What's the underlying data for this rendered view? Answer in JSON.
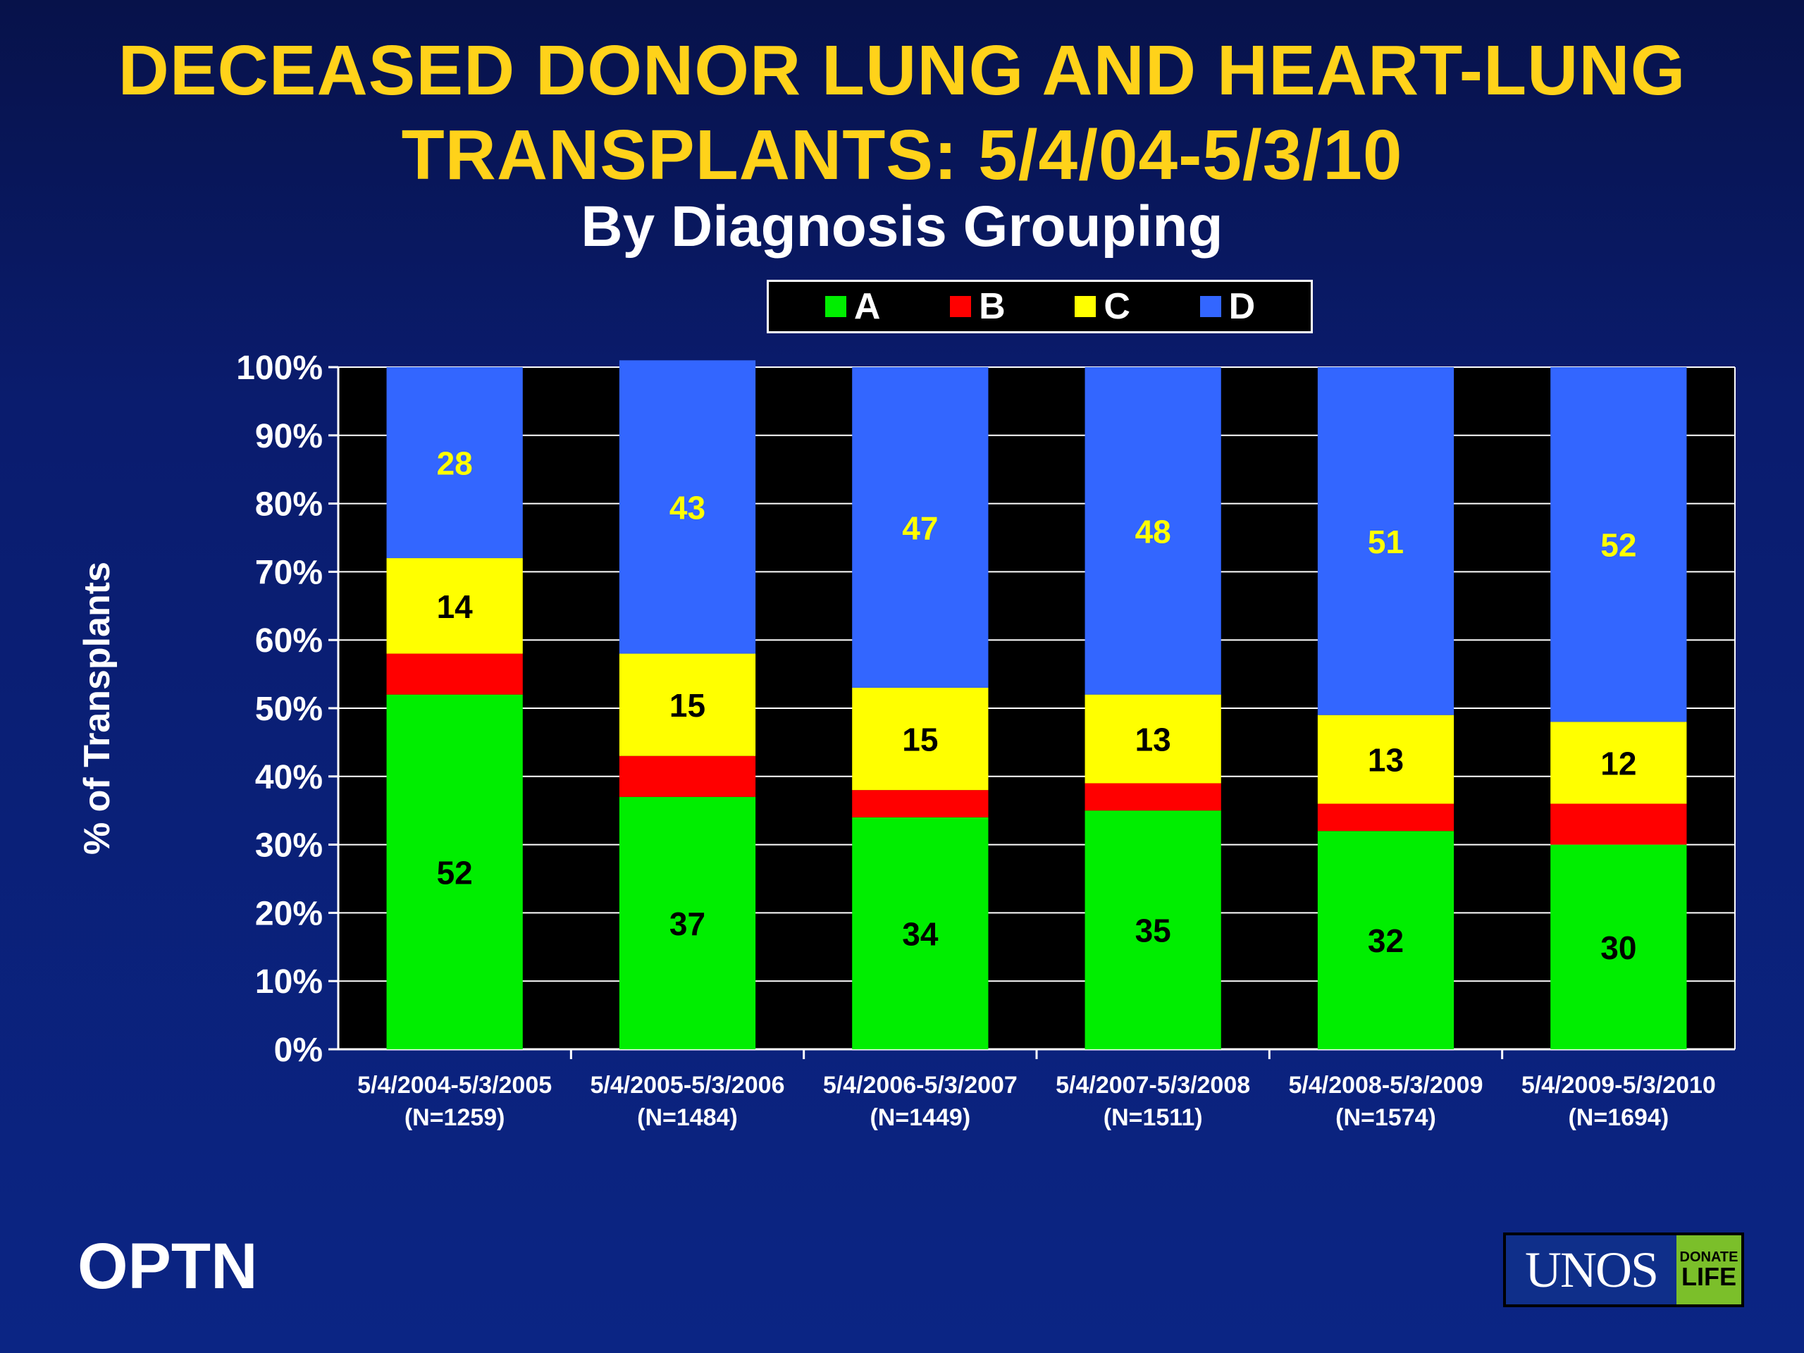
{
  "header": {
    "title_line1": "DECEASED DONOR LUNG AND HEART-LUNG",
    "title_line2": "TRANSPLANTS: 5/4/04-5/3/10",
    "subtitle": "By Diagnosis Grouping"
  },
  "footer": {
    "org": "OPTN",
    "logo_main": "UNOS",
    "logo_side_top": "DONATE",
    "logo_side_bottom": "LIFE"
  },
  "colors": {
    "A": "#00ee00",
    "B": "#ff0000",
    "C": "#ffff00",
    "D": "#3366ff",
    "title": "#ffd21a"
  },
  "chart_data": {
    "type": "bar",
    "stacked": true,
    "title": "DECEASED DONOR LUNG AND HEART-LUNG TRANSPLANTS: 5/4/04-5/3/10",
    "subtitle": "By Diagnosis Grouping",
    "xlabel": "",
    "ylabel": "% of Transplants",
    "ylim": [
      0,
      100
    ],
    "y_ticks": [
      "0%",
      "10%",
      "20%",
      "30%",
      "40%",
      "50%",
      "60%",
      "70%",
      "80%",
      "90%",
      "100%"
    ],
    "grid": true,
    "legend_position": "top",
    "categories": [
      "5/4/2004-5/3/2005",
      "5/4/2005-5/3/2006",
      "5/4/2006-5/3/2007",
      "5/4/2007-5/3/2008",
      "5/4/2008-5/3/2009",
      "5/4/2009-5/3/2010"
    ],
    "category_n": [
      "(N=1259)",
      "(N=1484)",
      "(N=1449)",
      "(N=1511)",
      "(N=1574)",
      "(N=1694)"
    ],
    "series": [
      {
        "name": "A",
        "values": [
          52,
          37,
          34,
          35,
          32,
          30
        ],
        "labels": [
          "52",
          "37",
          "34",
          "35",
          "32",
          "30"
        ]
      },
      {
        "name": "B",
        "values": [
          6,
          6,
          4,
          4,
          4,
          6
        ],
        "labels": [
          "",
          "",
          "",
          "",
          "",
          ""
        ]
      },
      {
        "name": "C",
        "values": [
          14,
          15,
          15,
          13,
          13,
          12
        ],
        "labels": [
          "14",
          "15",
          "15",
          "13",
          "13",
          "12"
        ]
      },
      {
        "name": "D",
        "values": [
          28,
          43,
          47,
          48,
          51,
          52
        ],
        "labels": [
          "28",
          "43",
          "47",
          "48",
          "51",
          "52"
        ]
      }
    ]
  }
}
